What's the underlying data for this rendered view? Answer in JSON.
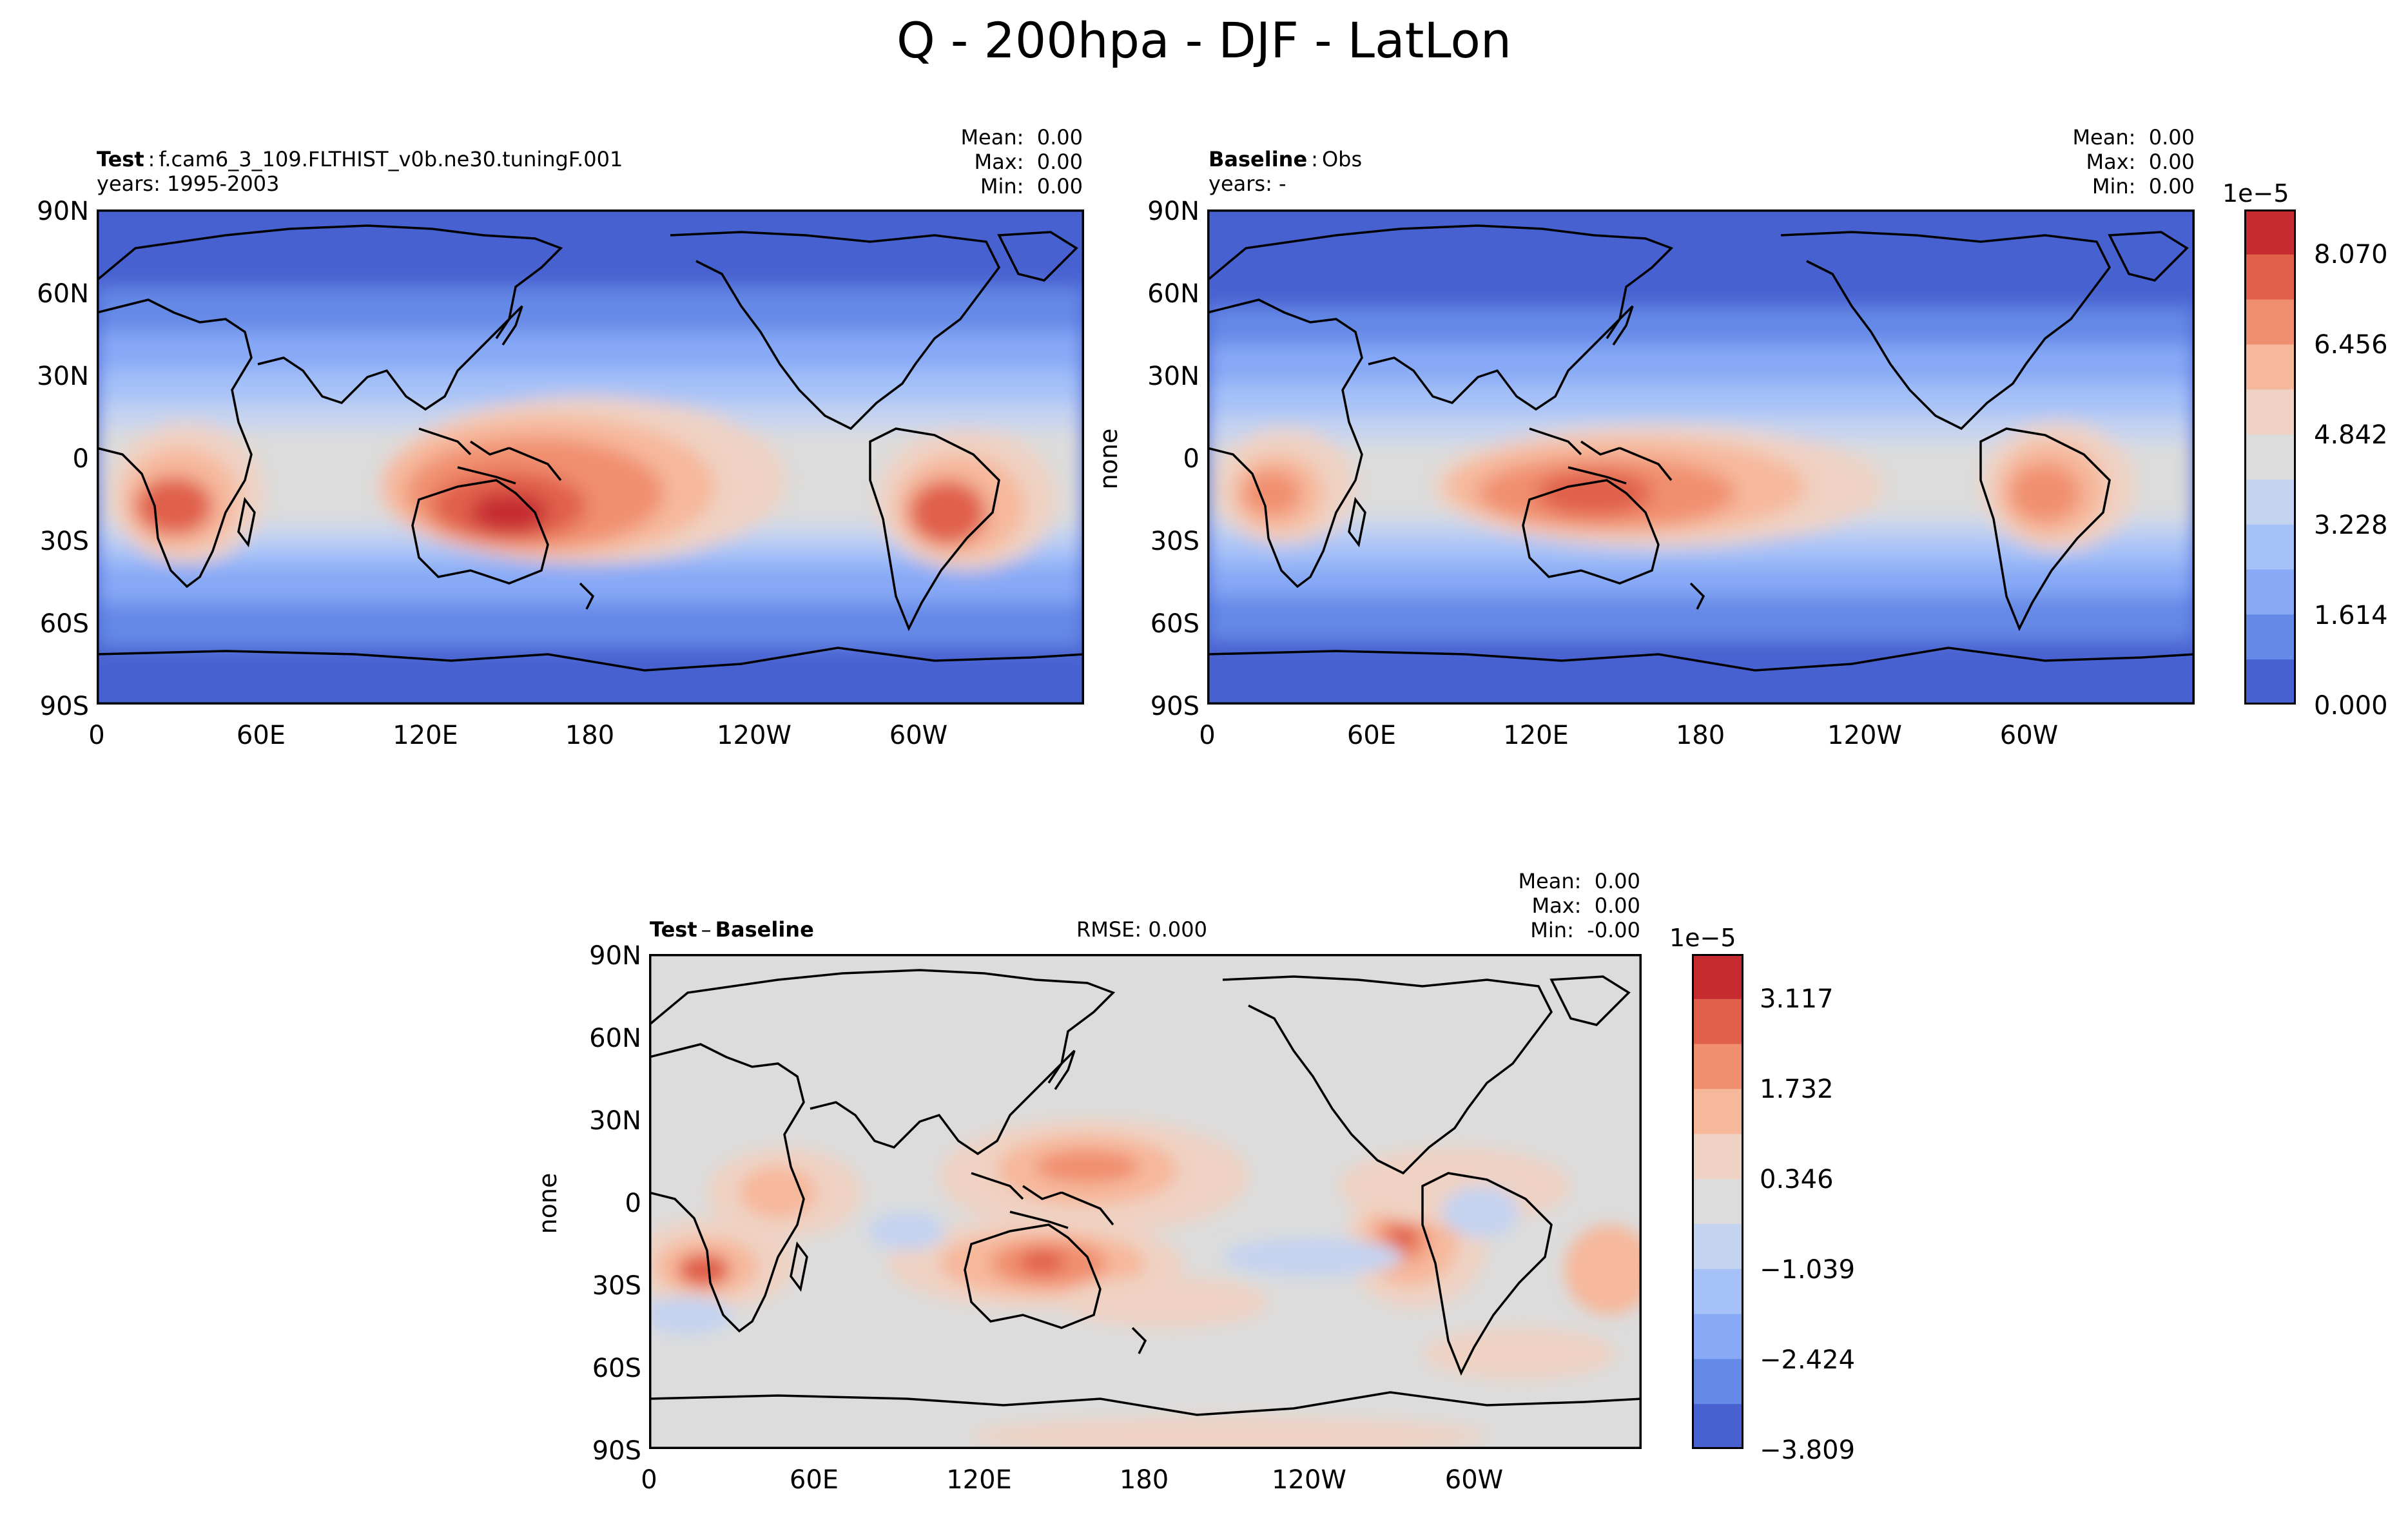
{
  "figure": {
    "title": "Q - 200hpa - DJF - LatLon"
  },
  "panels": {
    "test": {
      "label_bold": "Test",
      "label_sep": ":",
      "label_rest": "f.cam6_3_109.FLTHIST_v0b.ne30.tuningF.001",
      "years": "years: 1995-2003",
      "stats": {
        "mean_label": "Mean:",
        "mean": "0.00",
        "max_label": "Max:",
        "max": "0.00",
        "min_label": "Min:",
        "min": "0.00"
      }
    },
    "baseline": {
      "label_bold": "Baseline",
      "label_sep": ":",
      "label_rest": "Obs",
      "years": "years: -",
      "ylabel": "none",
      "stats": {
        "mean_label": "Mean:",
        "mean": "0.00",
        "max_label": "Max:",
        "max": "0.00",
        "min_label": "Min:",
        "min": "0.00"
      }
    },
    "diff": {
      "label_bold": "Test",
      "label_sep": "–",
      "label_bold2": "Baseline",
      "rmse": "RMSE: 0.000",
      "ylabel": "none",
      "stats": {
        "mean_label": "Mean:",
        "mean": "0.00",
        "max_label": "Max:",
        "max": "0.00",
        "min_label": "Min:",
        "min": "-0.00"
      }
    }
  },
  "axes": {
    "lat_ticks": [
      "90N",
      "60N",
      "30N",
      "0",
      "30S",
      "60S",
      "90S"
    ],
    "lon_ticks": [
      "0",
      "60E",
      "120E",
      "180",
      "120W",
      "60W"
    ]
  },
  "colorbars": {
    "top": {
      "exponent": "1e−5",
      "labels": [
        "8.070",
        "6.456",
        "4.842",
        "3.228",
        "1.614",
        "0.000"
      ],
      "colors": [
        "#c62b30",
        "#e0604b",
        "#f08f70",
        "#f6b89b",
        "#efd2c3",
        "#dcdcdc",
        "#c4d3f0",
        "#a6c1f8",
        "#87a9f6",
        "#6589e6",
        "#4861d0"
      ]
    },
    "diff": {
      "exponent": "1e−5",
      "labels": [
        "3.117",
        "1.732",
        "0.346",
        "−1.039",
        "−2.424",
        "−3.809"
      ],
      "colors": [
        "#c62b30",
        "#e0604b",
        "#f08f70",
        "#f6b89b",
        "#efd2c3",
        "#dcdcdc",
        "#c4d3f0",
        "#a6c1f8",
        "#87a9f6",
        "#6589e6",
        "#4861d0"
      ]
    }
  },
  "colors": {
    "land_outline": "#000000",
    "diff_background": "#dcdcdc"
  }
}
